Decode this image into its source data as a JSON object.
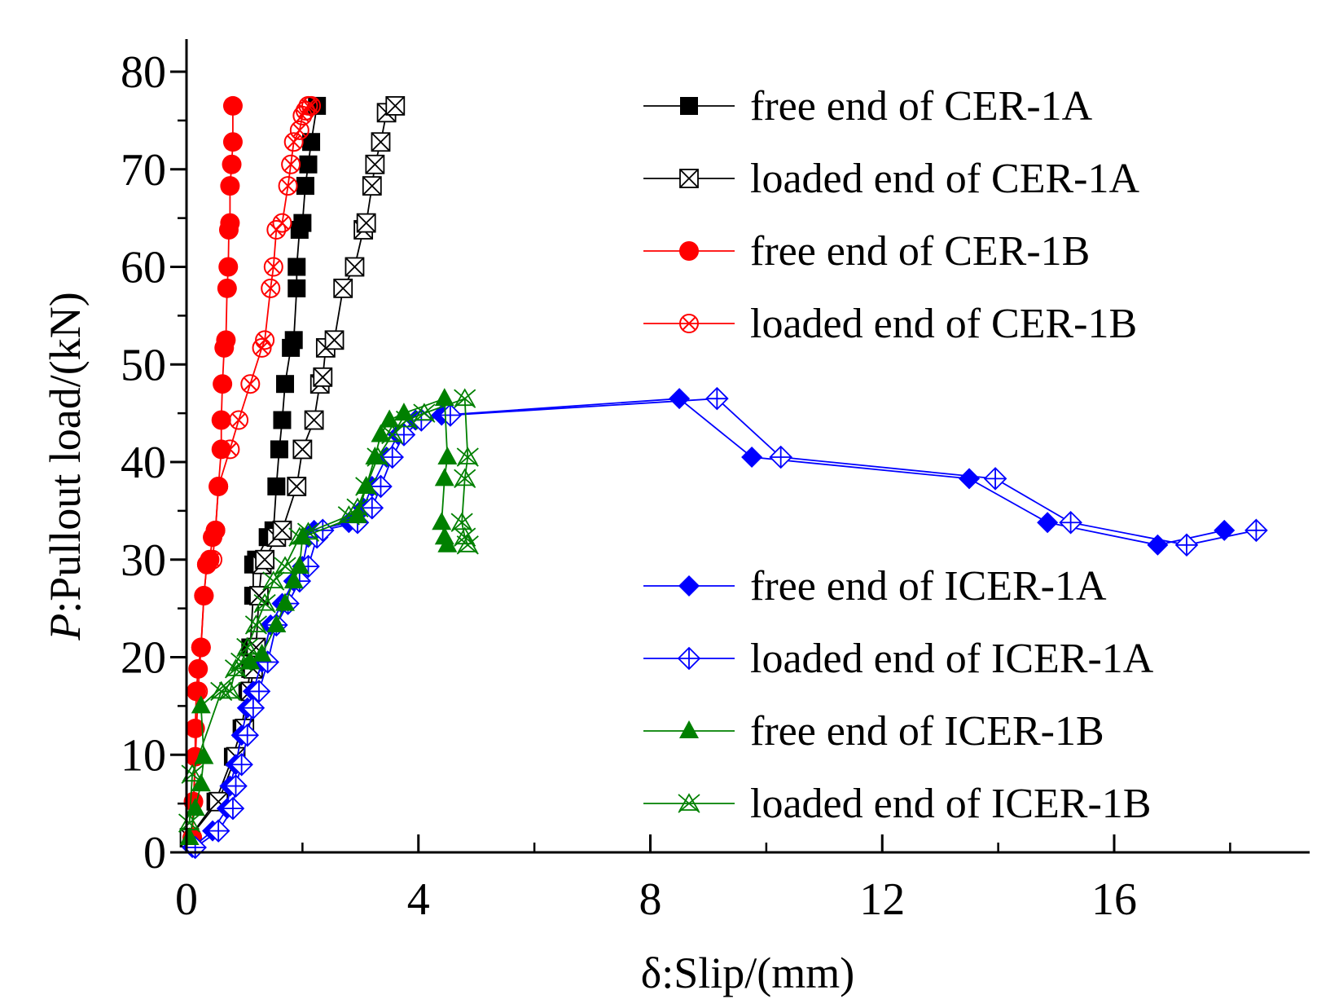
{
  "chart_data": {
    "type": "line",
    "title": "",
    "xlabel": "δ:Slip/(mm)",
    "ylabel_italic": "P",
    "ylabel_rest": ":Pullout load/(kN)",
    "xlim": [
      0,
      19
    ],
    "ylim": [
      0,
      80
    ],
    "x_major_ticks": [
      0,
      4,
      8,
      12,
      16
    ],
    "x_major_tick_labels": [
      "0",
      "4",
      "8",
      "12",
      "16"
    ],
    "x_minor_ticks": [
      2,
      6,
      10,
      14,
      18
    ],
    "y_major_ticks": [
      0,
      10,
      20,
      30,
      40,
      50,
      60,
      70,
      80
    ],
    "y_major_tick_labels": [
      "0",
      "10",
      "20",
      "30",
      "40",
      "50",
      "60",
      "70",
      "80"
    ],
    "y_minor_ticks": [
      5,
      15,
      25,
      35,
      45,
      55,
      65,
      75
    ],
    "grid": false,
    "series": [
      {
        "name": "free end of CER-1A",
        "color": "#000000",
        "marker": "square-filled",
        "x": [
          0.05,
          0.5,
          0.8,
          0.95,
          1.05,
          1.1,
          1.1,
          1.15,
          1.15,
          1.2,
          1.4,
          1.5,
          1.55,
          1.6,
          1.65,
          1.7,
          1.8,
          1.85,
          1.9,
          1.9,
          1.95,
          2.0,
          2.05,
          2.1,
          2.15,
          2.25
        ],
        "y": [
          1.5,
          5.2,
          9.8,
          12.7,
          16.5,
          18.8,
          21.0,
          26.3,
          29.5,
          30.0,
          32.3,
          33.0,
          37.5,
          41.3,
          44.3,
          48.0,
          51.7,
          52.5,
          57.8,
          60.0,
          63.8,
          64.5,
          68.3,
          70.5,
          72.8,
          76.5
        ]
      },
      {
        "name": "loaded end of CER-1A",
        "color": "#000000",
        "marker": "square-x",
        "x": [
          0.05,
          0.55,
          0.85,
          1.0,
          1.1,
          1.15,
          1.2,
          1.25,
          1.3,
          1.35,
          1.55,
          1.65,
          1.9,
          2.0,
          2.2,
          2.3,
          2.35,
          2.4,
          2.55,
          2.7,
          2.9,
          3.05,
          3.1,
          3.2,
          3.25,
          3.35,
          3.45,
          3.6
        ],
        "y": [
          1.5,
          5.2,
          9.8,
          12.7,
          16.5,
          18.8,
          21.0,
          26.3,
          29.5,
          30.0,
          32.3,
          33.0,
          37.5,
          41.3,
          44.3,
          48.0,
          48.7,
          51.7,
          52.5,
          57.8,
          60.0,
          63.8,
          64.5,
          68.3,
          70.5,
          72.8,
          75.8,
          76.5
        ]
      },
      {
        "name": "free end of CER-1B",
        "color": "#ff0000",
        "marker": "circle-filled",
        "x": [
          0.1,
          0.12,
          0.15,
          0.15,
          0.17,
          0.2,
          0.25,
          0.3,
          0.35,
          0.4,
          0.45,
          0.5,
          0.55,
          0.6,
          0.6,
          0.62,
          0.65,
          0.68,
          0.7,
          0.72,
          0.73,
          0.75,
          0.75,
          0.78,
          0.8,
          0.8
        ],
        "y": [
          1.5,
          5.2,
          9.8,
          12.7,
          16.5,
          18.8,
          21.0,
          26.3,
          29.5,
          30.0,
          32.3,
          33.0,
          37.5,
          41.3,
          44.3,
          48.0,
          51.7,
          52.5,
          57.8,
          60.0,
          63.8,
          64.5,
          68.3,
          70.5,
          72.8,
          76.5
        ]
      },
      {
        "name": "loaded end of CER-1B",
        "color": "#ff0000",
        "marker": "circle-x",
        "x": [
          0.1,
          0.2,
          0.25,
          0.3,
          0.35,
          0.45,
          0.5,
          0.55,
          0.75,
          0.9,
          1.1,
          1.3,
          1.35,
          1.45,
          1.5,
          1.55,
          1.65,
          1.75,
          1.8,
          1.85,
          1.95,
          2.0,
          2.05,
          2.1,
          2.15
        ],
        "y": [
          1.5,
          16.5,
          21.0,
          26.3,
          29.5,
          30.0,
          33.0,
          37.5,
          41.3,
          44.3,
          48.0,
          51.7,
          52.5,
          57.8,
          60.0,
          63.8,
          64.5,
          68.3,
          70.5,
          72.8,
          74.0,
          75.5,
          76.0,
          76.5,
          76.5
        ]
      },
      {
        "name": "free end of ICER-1A",
        "color": "#0000ff",
        "marker": "diamond-filled",
        "x": [
          0.1,
          0.45,
          0.7,
          0.75,
          0.85,
          0.95,
          1.05,
          1.15,
          1.3,
          1.45,
          1.65,
          1.85,
          2.0,
          2.1,
          2.2,
          2.8,
          3.05,
          3.2,
          3.45,
          3.65,
          3.95,
          4.4,
          8.5,
          9.75,
          13.5,
          14.85,
          16.75,
          17.9
        ],
        "y": [
          0.5,
          2.2,
          4.5,
          6.8,
          9.0,
          12.0,
          14.8,
          16.5,
          19.5,
          23.3,
          25.5,
          27.8,
          29.3,
          32.3,
          33.0,
          33.8,
          35.3,
          37.5,
          40.5,
          42.8,
          44.3,
          44.8,
          46.5,
          40.5,
          38.3,
          33.8,
          31.5,
          33.0
        ]
      },
      {
        "name": "loaded end of ICER-1A",
        "color": "#0000ff",
        "marker": "diamond-plus",
        "x": [
          0.15,
          0.55,
          0.8,
          0.85,
          0.95,
          1.05,
          1.15,
          1.25,
          1.4,
          1.55,
          1.75,
          1.95,
          2.1,
          2.25,
          2.35,
          2.95,
          3.2,
          3.35,
          3.55,
          3.75,
          4.05,
          4.55,
          9.15,
          10.25,
          13.95,
          15.25,
          17.25,
          18.45
        ],
        "y": [
          0.5,
          2.2,
          4.5,
          6.8,
          9.0,
          12.0,
          14.8,
          16.5,
          19.5,
          23.3,
          25.5,
          27.8,
          29.3,
          32.3,
          33.0,
          33.8,
          35.3,
          37.5,
          40.5,
          42.8,
          44.3,
          44.8,
          46.5,
          40.5,
          38.3,
          33.8,
          31.5,
          33.0
        ]
      },
      {
        "name": "free end of ICER-1B",
        "color": "#008000",
        "marker": "triangle-filled",
        "x": [
          0.05,
          0.15,
          0.25,
          0.3,
          0.25,
          1.1,
          1.3,
          1.55,
          1.7,
          1.85,
          1.95,
          2.0,
          2.95,
          3.1,
          3.25,
          3.35,
          3.5,
          3.75,
          4.45,
          4.5,
          4.45,
          4.4,
          4.45,
          4.5
        ],
        "y": [
          1.5,
          4.5,
          7.0,
          9.8,
          15.0,
          19.5,
          20.3,
          23.3,
          25.5,
          27.8,
          29.3,
          32.3,
          34.5,
          37.5,
          40.5,
          42.8,
          44.3,
          45.0,
          46.5,
          40.5,
          38.3,
          33.8,
          32.3,
          31.5
        ]
      },
      {
        "name": "loaded end of ICER-1B",
        "color": "#008000",
        "marker": "x-cross",
        "x": [
          0.05,
          0.1,
          0.6,
          0.75,
          0.85,
          0.95,
          1.05,
          1.2,
          1.35,
          1.5,
          1.7,
          1.95,
          2.1,
          2.8,
          2.95,
          3.1,
          3.3,
          3.55,
          3.8,
          4.1,
          4.8,
          4.85,
          4.8,
          4.75,
          4.8,
          4.85
        ],
        "y": [
          3.0,
          8.0,
          16.5,
          16.5,
          18.8,
          19.5,
          21.0,
          23.3,
          25.5,
          27.8,
          29.3,
          32.3,
          32.8,
          34.5,
          35.3,
          37.5,
          40.5,
          42.8,
          44.3,
          45.0,
          46.5,
          40.5,
          38.3,
          33.8,
          32.3,
          31.5
        ]
      }
    ],
    "legend_top": {
      "position": "top-right",
      "entries": [
        "free end of CER-1A",
        "loaded end of CER-1A",
        "free end of CER-1B",
        "loaded end of CER-1B"
      ]
    },
    "legend_bottom": {
      "position": "bottom-right",
      "entries": [
        "free end of ICER-1A",
        "loaded end of ICER-1A",
        "free end of ICER-1B",
        "loaded end of ICER-1B"
      ]
    }
  }
}
